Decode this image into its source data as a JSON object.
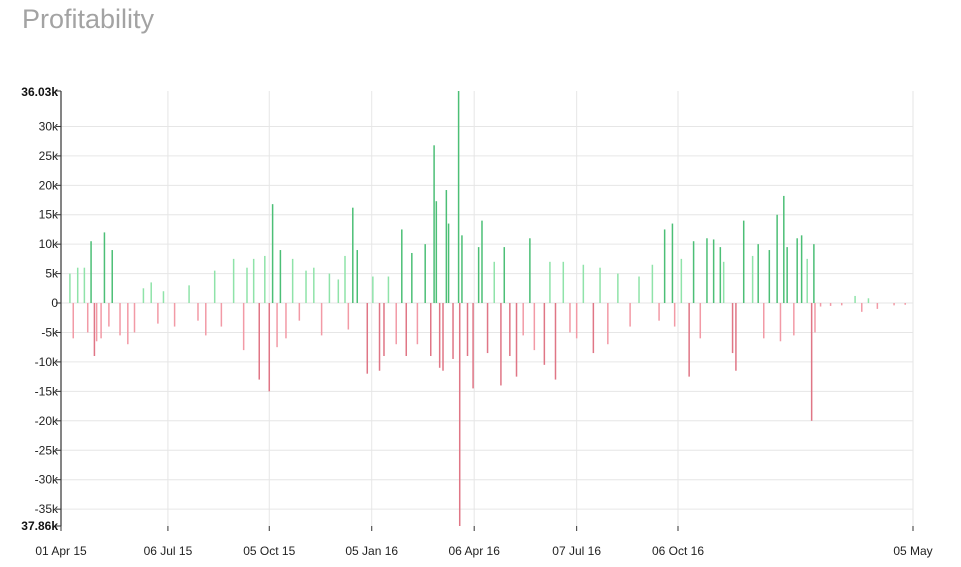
{
  "title": "Profitability",
  "chart_data": {
    "type": "bar",
    "title": "Profitability",
    "xlabel": "",
    "ylabel": "",
    "ylim": [
      -37860,
      36030
    ],
    "y_min_label": "37.86k",
    "y_max_label": "36.03k",
    "y_ticks": [
      {
        "value": 30000,
        "label": "30k"
      },
      {
        "value": 25000,
        "label": "25k"
      },
      {
        "value": 20000,
        "label": "20k"
      },
      {
        "value": 15000,
        "label": "15k"
      },
      {
        "value": 10000,
        "label": "10k"
      },
      {
        "value": 5000,
        "label": "5k"
      },
      {
        "value": 0,
        "label": "0"
      },
      {
        "value": -5000,
        "label": "-5k"
      },
      {
        "value": -10000,
        "label": "-10k"
      },
      {
        "value": -15000,
        "label": "-15k"
      },
      {
        "value": -20000,
        "label": "-20k"
      },
      {
        "value": -25000,
        "label": "-25k"
      },
      {
        "value": -30000,
        "label": "-30k"
      },
      {
        "value": -35000,
        "label": "-35k"
      }
    ],
    "x_range": [
      "2015-04-01",
      "2017-05-05"
    ],
    "x_ticks": [
      {
        "date": "2015-04-01",
        "label": "01 Apr 15"
      },
      {
        "date": "2015-07-06",
        "label": "06 Jul 15"
      },
      {
        "date": "2015-10-05",
        "label": "05 Oct 15"
      },
      {
        "date": "2016-01-05",
        "label": "05 Jan 16"
      },
      {
        "date": "2016-04-06",
        "label": "06 Apr 16"
      },
      {
        "date": "2016-07-07",
        "label": "07 Jul 16"
      },
      {
        "date": "2016-10-06",
        "label": "06 Oct 16"
      },
      {
        "date": "2017-05-05",
        "label": "05 May"
      }
    ],
    "grid": true,
    "colors": {
      "positive": "#8fe3a9",
      "positive_strong": "#4cbf76",
      "negative": "#f29aa6",
      "negative_strong": "#e07686"
    },
    "series": [
      {
        "values": [
          {
            "x": "2015-04-09",
            "y": 5000
          },
          {
            "x": "2015-04-12",
            "y": -6000
          },
          {
            "x": "2015-04-16",
            "y": 6000
          },
          {
            "x": "2015-04-22",
            "y": 6000
          },
          {
            "x": "2015-04-25",
            "y": -5000
          },
          {
            "x": "2015-04-28",
            "y": 10500
          },
          {
            "x": "2015-05-01",
            "y": -9000
          },
          {
            "x": "2015-05-03",
            "y": -6500
          },
          {
            "x": "2015-05-07",
            "y": -6000
          },
          {
            "x": "2015-05-10",
            "y": 12000
          },
          {
            "x": "2015-05-14",
            "y": -4000
          },
          {
            "x": "2015-05-17",
            "y": 9000
          },
          {
            "x": "2015-05-24",
            "y": -5500
          },
          {
            "x": "2015-05-31",
            "y": -7000
          },
          {
            "x": "2015-06-06",
            "y": -5000
          },
          {
            "x": "2015-06-14",
            "y": 2500
          },
          {
            "x": "2015-06-21",
            "y": 3500
          },
          {
            "x": "2015-06-27",
            "y": -3500
          },
          {
            "x": "2015-07-02",
            "y": 2000
          },
          {
            "x": "2015-07-12",
            "y": -4000
          },
          {
            "x": "2015-07-25",
            "y": 3000
          },
          {
            "x": "2015-08-02",
            "y": -3000
          },
          {
            "x": "2015-08-09",
            "y": -5500
          },
          {
            "x": "2015-08-17",
            "y": 5500
          },
          {
            "x": "2015-08-23",
            "y": -4000
          },
          {
            "x": "2015-09-03",
            "y": 7500
          },
          {
            "x": "2015-09-12",
            "y": -8000
          },
          {
            "x": "2015-09-15",
            "y": 6000
          },
          {
            "x": "2015-09-21",
            "y": 7500
          },
          {
            "x": "2015-09-26",
            "y": -13000
          },
          {
            "x": "2015-10-01",
            "y": 8000
          },
          {
            "x": "2015-10-05",
            "y": -15000
          },
          {
            "x": "2015-10-08",
            "y": 16800
          },
          {
            "x": "2015-10-12",
            "y": -7500
          },
          {
            "x": "2015-10-15",
            "y": 9000
          },
          {
            "x": "2015-10-20",
            "y": -6000
          },
          {
            "x": "2015-10-26",
            "y": 7500
          },
          {
            "x": "2015-11-01",
            "y": -3000
          },
          {
            "x": "2015-11-07",
            "y": 5500
          },
          {
            "x": "2015-11-14",
            "y": 6000
          },
          {
            "x": "2015-11-21",
            "y": -5500
          },
          {
            "x": "2015-11-28",
            "y": 5000
          },
          {
            "x": "2015-12-06",
            "y": 4000
          },
          {
            "x": "2015-12-12",
            "y": 8000
          },
          {
            "x": "2015-12-15",
            "y": -4500
          },
          {
            "x": "2015-12-19",
            "y": 16200
          },
          {
            "x": "2015-12-23",
            "y": 9000
          },
          {
            "x": "2016-01-01",
            "y": -12000
          },
          {
            "x": "2016-01-06",
            "y": 4500
          },
          {
            "x": "2016-01-12",
            "y": -11500
          },
          {
            "x": "2016-01-16",
            "y": -9000
          },
          {
            "x": "2016-01-20",
            "y": 4500
          },
          {
            "x": "2016-01-27",
            "y": -7000
          },
          {
            "x": "2016-02-01",
            "y": 12500
          },
          {
            "x": "2016-02-05",
            "y": -9000
          },
          {
            "x": "2016-02-10",
            "y": 8500
          },
          {
            "x": "2016-02-15",
            "y": -7000
          },
          {
            "x": "2016-02-22",
            "y": 10000
          },
          {
            "x": "2016-02-27",
            "y": -9000
          },
          {
            "x": "2016-03-01",
            "y": 26800
          },
          {
            "x": "2016-03-03",
            "y": 17300
          },
          {
            "x": "2016-03-06",
            "y": -11000
          },
          {
            "x": "2016-03-09",
            "y": -11500
          },
          {
            "x": "2016-03-12",
            "y": 19200
          },
          {
            "x": "2016-03-14",
            "y": 13500
          },
          {
            "x": "2016-03-18",
            "y": -9500
          },
          {
            "x": "2016-03-23",
            "y": 36030
          },
          {
            "x": "2016-03-24",
            "y": -37860
          },
          {
            "x": "2016-03-26",
            "y": 11500
          },
          {
            "x": "2016-03-31",
            "y": -9000
          },
          {
            "x": "2016-04-05",
            "y": -14500
          },
          {
            "x": "2016-04-10",
            "y": 9500
          },
          {
            "x": "2016-04-13",
            "y": 14000
          },
          {
            "x": "2016-04-18",
            "y": -8500
          },
          {
            "x": "2016-04-24",
            "y": 7000
          },
          {
            "x": "2016-04-30",
            "y": -14000
          },
          {
            "x": "2016-05-03",
            "y": 9500
          },
          {
            "x": "2016-05-08",
            "y": -9000
          },
          {
            "x": "2016-05-14",
            "y": -12500
          },
          {
            "x": "2016-05-20",
            "y": -5500
          },
          {
            "x": "2016-05-26",
            "y": 11000
          },
          {
            "x": "2016-05-30",
            "y": -8000
          },
          {
            "x": "2016-06-08",
            "y": -10500
          },
          {
            "x": "2016-06-13",
            "y": 7000
          },
          {
            "x": "2016-06-18",
            "y": -13000
          },
          {
            "x": "2016-06-25",
            "y": 7000
          },
          {
            "x": "2016-07-01",
            "y": -5000
          },
          {
            "x": "2016-07-07",
            "y": -6000
          },
          {
            "x": "2016-07-13",
            "y": 6500
          },
          {
            "x": "2016-07-22",
            "y": -8500
          },
          {
            "x": "2016-07-28",
            "y": 6000
          },
          {
            "x": "2016-08-04",
            "y": -7000
          },
          {
            "x": "2016-08-13",
            "y": 5000
          },
          {
            "x": "2016-08-24",
            "y": -4000
          },
          {
            "x": "2016-09-01",
            "y": 4500
          },
          {
            "x": "2016-09-13",
            "y": 6500
          },
          {
            "x": "2016-09-19",
            "y": -3000
          },
          {
            "x": "2016-09-24",
            "y": 12500
          },
          {
            "x": "2016-10-01",
            "y": 13500
          },
          {
            "x": "2016-10-03",
            "y": -4000
          },
          {
            "x": "2016-10-09",
            "y": 7500
          },
          {
            "x": "2016-10-16",
            "y": -12500
          },
          {
            "x": "2016-10-20",
            "y": 10500
          },
          {
            "x": "2016-10-26",
            "y": -6000
          },
          {
            "x": "2016-11-01",
            "y": 11000
          },
          {
            "x": "2016-11-07",
            "y": 10800
          },
          {
            "x": "2016-11-13",
            "y": 9500
          },
          {
            "x": "2016-11-16",
            "y": 7000
          },
          {
            "x": "2016-11-24",
            "y": -8500
          },
          {
            "x": "2016-11-27",
            "y": -11500
          },
          {
            "x": "2016-12-04",
            "y": 14000
          },
          {
            "x": "2016-12-12",
            "y": 8000
          },
          {
            "x": "2016-12-17",
            "y": 10000
          },
          {
            "x": "2016-12-22",
            "y": -6000
          },
          {
            "x": "2016-12-27",
            "y": 9000
          },
          {
            "x": "2017-01-03",
            "y": 15000
          },
          {
            "x": "2017-01-06",
            "y": -6500
          },
          {
            "x": "2017-01-09",
            "y": 18200
          },
          {
            "x": "2017-01-12",
            "y": 9500
          },
          {
            "x": "2017-01-18",
            "y": -5500
          },
          {
            "x": "2017-01-21",
            "y": 11000
          },
          {
            "x": "2017-01-25",
            "y": 11500
          },
          {
            "x": "2017-01-30",
            "y": 7500
          },
          {
            "x": "2017-02-03",
            "y": -20000
          },
          {
            "x": "2017-02-05",
            "y": 10000
          },
          {
            "x": "2017-02-06",
            "y": -5000
          },
          {
            "x": "2017-02-11",
            "y": -600
          },
          {
            "x": "2017-02-20",
            "y": -500
          },
          {
            "x": "2017-03-02",
            "y": -400
          },
          {
            "x": "2017-03-14",
            "y": 1200
          },
          {
            "x": "2017-03-20",
            "y": -1500
          },
          {
            "x": "2017-03-26",
            "y": 800
          },
          {
            "x": "2017-04-03",
            "y": -1000
          },
          {
            "x": "2017-04-18",
            "y": -400
          },
          {
            "x": "2017-04-28",
            "y": -300
          }
        ]
      }
    ]
  }
}
